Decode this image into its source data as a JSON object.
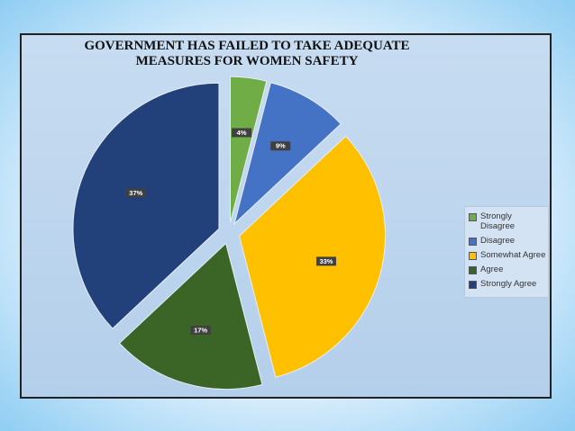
{
  "chart_data": {
    "type": "pie",
    "title": "GOVERNMENT HAS FAILED TO TAKE ADEQUATE MEASURES FOR WOMEN SAFETY",
    "categories": [
      "Strongly Disagree",
      "Disagree",
      "Somewhat Agree",
      "Agree",
      "Strongly Agree"
    ],
    "values": [
      4,
      9,
      33,
      17,
      37
    ],
    "value_labels": [
      "4%",
      "9%",
      "33%",
      "17%",
      "37%"
    ],
    "colors": [
      "#70ad47",
      "#4472c4",
      "#ffc000",
      "#3b6526",
      "#22407a"
    ]
  }
}
